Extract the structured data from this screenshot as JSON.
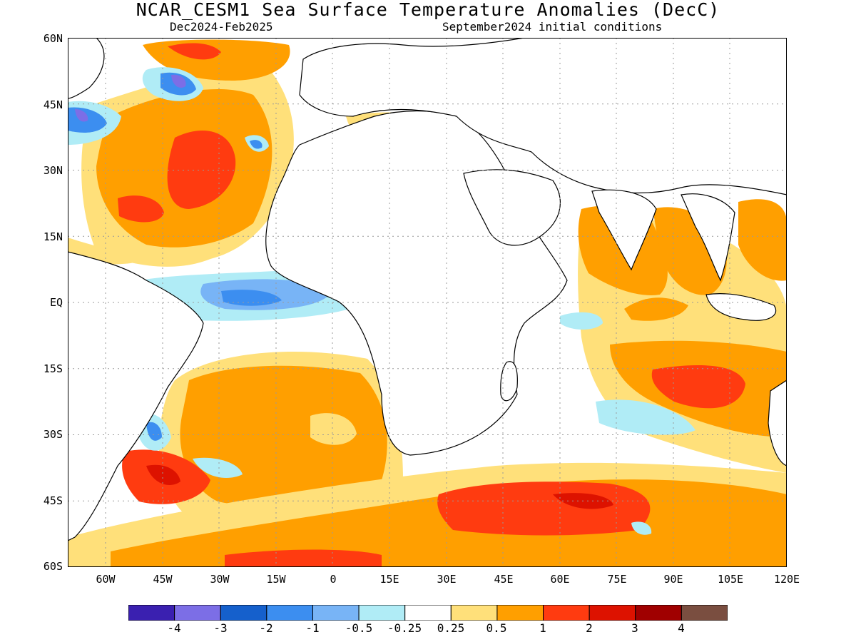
{
  "title": "NCAR_CESM1 Sea Surface Temperature Anomalies (DecC)",
  "subtitle_left": "Dec2024-Feb2025",
  "subtitle_right": "September2024 initial conditions",
  "axes": {
    "lat_labels": [
      "60N",
      "45N",
      "30N",
      "15N",
      "EQ",
      "15S",
      "30S",
      "45S",
      "60S"
    ],
    "lon_labels": [
      "60W",
      "45W",
      "30W",
      "15W",
      "0",
      "15E",
      "30E",
      "45E",
      "60E",
      "75E",
      "90E",
      "105E",
      "120E"
    ],
    "lat_range": [
      -60,
      60
    ],
    "lon_range": [
      -70,
      120
    ],
    "grid": "dotted"
  },
  "colorbar": {
    "colors": [
      "#3a20b0",
      "#7c6ee6",
      "#1560cc",
      "#3c8ef0",
      "#78b4f6",
      "#b0ecf6",
      "#ffffff",
      "#ffe07a",
      "#ff9f00",
      "#ff3b10",
      "#dd1200",
      "#a00000",
      "#7a4e40"
    ],
    "labels": [
      "-4",
      "-3",
      "-2",
      "-1",
      "-0.5",
      "-0.25",
      "0.25",
      "0.5",
      "1",
      "2",
      "3",
      "4"
    ]
  }
}
